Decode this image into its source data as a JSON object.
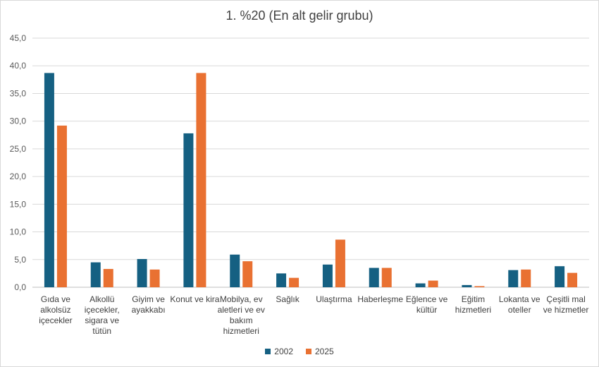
{
  "chart_data": {
    "type": "bar",
    "title": "1. %20 (En alt gelir grubu)",
    "xlabel": "",
    "ylabel": "",
    "ylim": [
      0,
      45
    ],
    "yticks": [
      "0,0",
      "5,0",
      "10,0",
      "15,0",
      "20,0",
      "25,0",
      "30,0",
      "35,0",
      "40,0",
      "45,0"
    ],
    "grid": true,
    "legend_position": "bottom",
    "categories": [
      [
        "Gıda ve",
        "alkolsüz",
        "içecekler"
      ],
      [
        "Alkollü",
        "içecekler,",
        "sigara ve",
        "tütün"
      ],
      [
        "Giyim ve",
        "ayakkabı"
      ],
      [
        "Konut ve kira"
      ],
      [
        "Mobilya, ev",
        "aletleri ve ev",
        "bakım",
        "hizmetleri"
      ],
      [
        "Sağlık"
      ],
      [
        "Ulaştırma"
      ],
      [
        "Haberleşme"
      ],
      [
        "Eğlence ve",
        "kültür"
      ],
      [
        "Eğitim",
        "hizmetleri"
      ],
      [
        "Lokanta ve",
        "oteller"
      ],
      [
        "Çeşitli mal",
        "ve hizmetler"
      ]
    ],
    "series": [
      {
        "name": "2002",
        "color": "#156082",
        "values": [
          38.7,
          4.5,
          5.1,
          27.8,
          5.9,
          2.5,
          4.1,
          3.5,
          0.7,
          0.4,
          3.1,
          3.8
        ]
      },
      {
        "name": "2025",
        "color": "#E97132",
        "values": [
          29.2,
          3.3,
          3.2,
          38.7,
          4.7,
          1.7,
          8.6,
          3.5,
          1.2,
          0.2,
          3.2,
          2.6
        ]
      }
    ]
  }
}
